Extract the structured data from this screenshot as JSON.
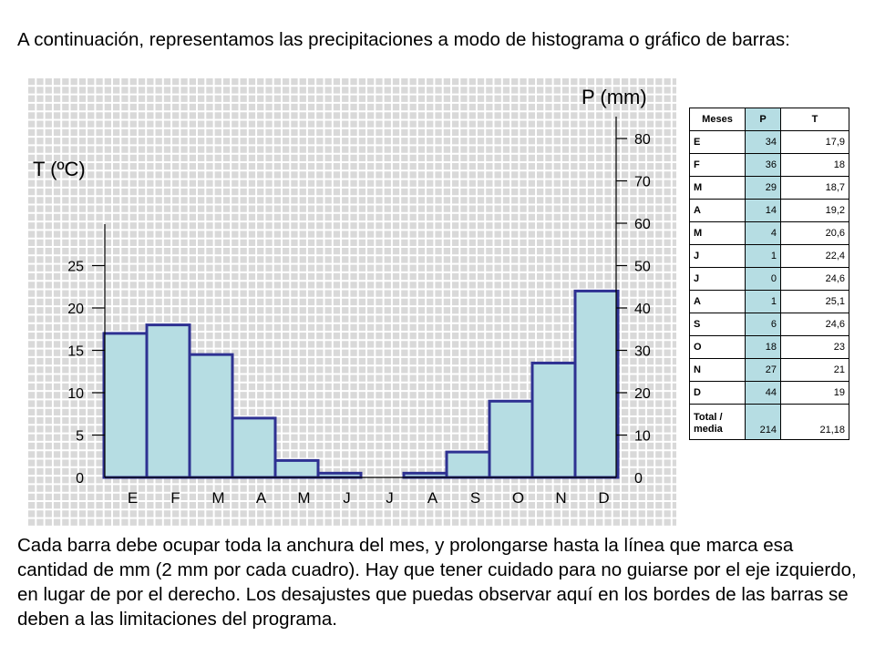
{
  "intro_text": "A continuación, representamos las precipitaciones a modo de histograma o gráfico de barras:",
  "outro_text": "Cada barra debe ocupar toda la anchura del mes, y prolongarse hasta la línea que marca esa cantidad de mm (2 mm por cada cuadro). Hay que tener cuidado para no guiarse por el eje izquierdo, en lugar de por el derecho. Los desajustes que puedas observar aquí en los bordes de las barras se deben a las limitaciones del programa.",
  "colors": {
    "bar_fill": "#b6dde3",
    "bar_stroke": "#2e3192",
    "grid": "#ffffff",
    "grid_bg": "#d9d9d9",
    "table_p_fill": "#b6dde3"
  },
  "chart_data": {
    "type": "bar",
    "categories": [
      "E",
      "F",
      "M",
      "A",
      "M",
      "J",
      "J",
      "A",
      "S",
      "O",
      "N",
      "D"
    ],
    "series": [
      {
        "values": [
          34,
          36,
          29,
          14,
          4,
          1,
          0,
          1,
          6,
          18,
          27,
          44
        ]
      }
    ],
    "left_axis": {
      "label": "T (ºC)",
      "ticks": [
        0,
        5,
        10,
        15,
        20,
        25
      ],
      "range": [
        0,
        27
      ]
    },
    "right_axis": {
      "label": "P (mm)",
      "ticks": [
        0,
        10,
        20,
        30,
        40,
        50,
        60,
        70,
        80
      ],
      "range": [
        0,
        85
      ]
    },
    "grid": true
  },
  "table": {
    "headers": [
      "Meses",
      "P",
      "T"
    ],
    "rows": [
      {
        "month": "E",
        "p": "34",
        "t": "17,9"
      },
      {
        "month": "F",
        "p": "36",
        "t": "18"
      },
      {
        "month": "M",
        "p": "29",
        "t": "18,7"
      },
      {
        "month": "A",
        "p": "14",
        "t": "19,2"
      },
      {
        "month": "M",
        "p": "4",
        "t": "20,6"
      },
      {
        "month": "J",
        "p": "1",
        "t": "22,4"
      },
      {
        "month": "J",
        "p": "0",
        "t": "24,6"
      },
      {
        "month": "A",
        "p": "1",
        "t": "25,1"
      },
      {
        "month": "S",
        "p": "6",
        "t": "24,6"
      },
      {
        "month": "O",
        "p": "18",
        "t": "23"
      },
      {
        "month": "N",
        "p": "27",
        "t": "21"
      },
      {
        "month": "D",
        "p": "44",
        "t": "19"
      }
    ],
    "total": {
      "month": "Total / media",
      "p": "214",
      "t": "21,18"
    }
  }
}
